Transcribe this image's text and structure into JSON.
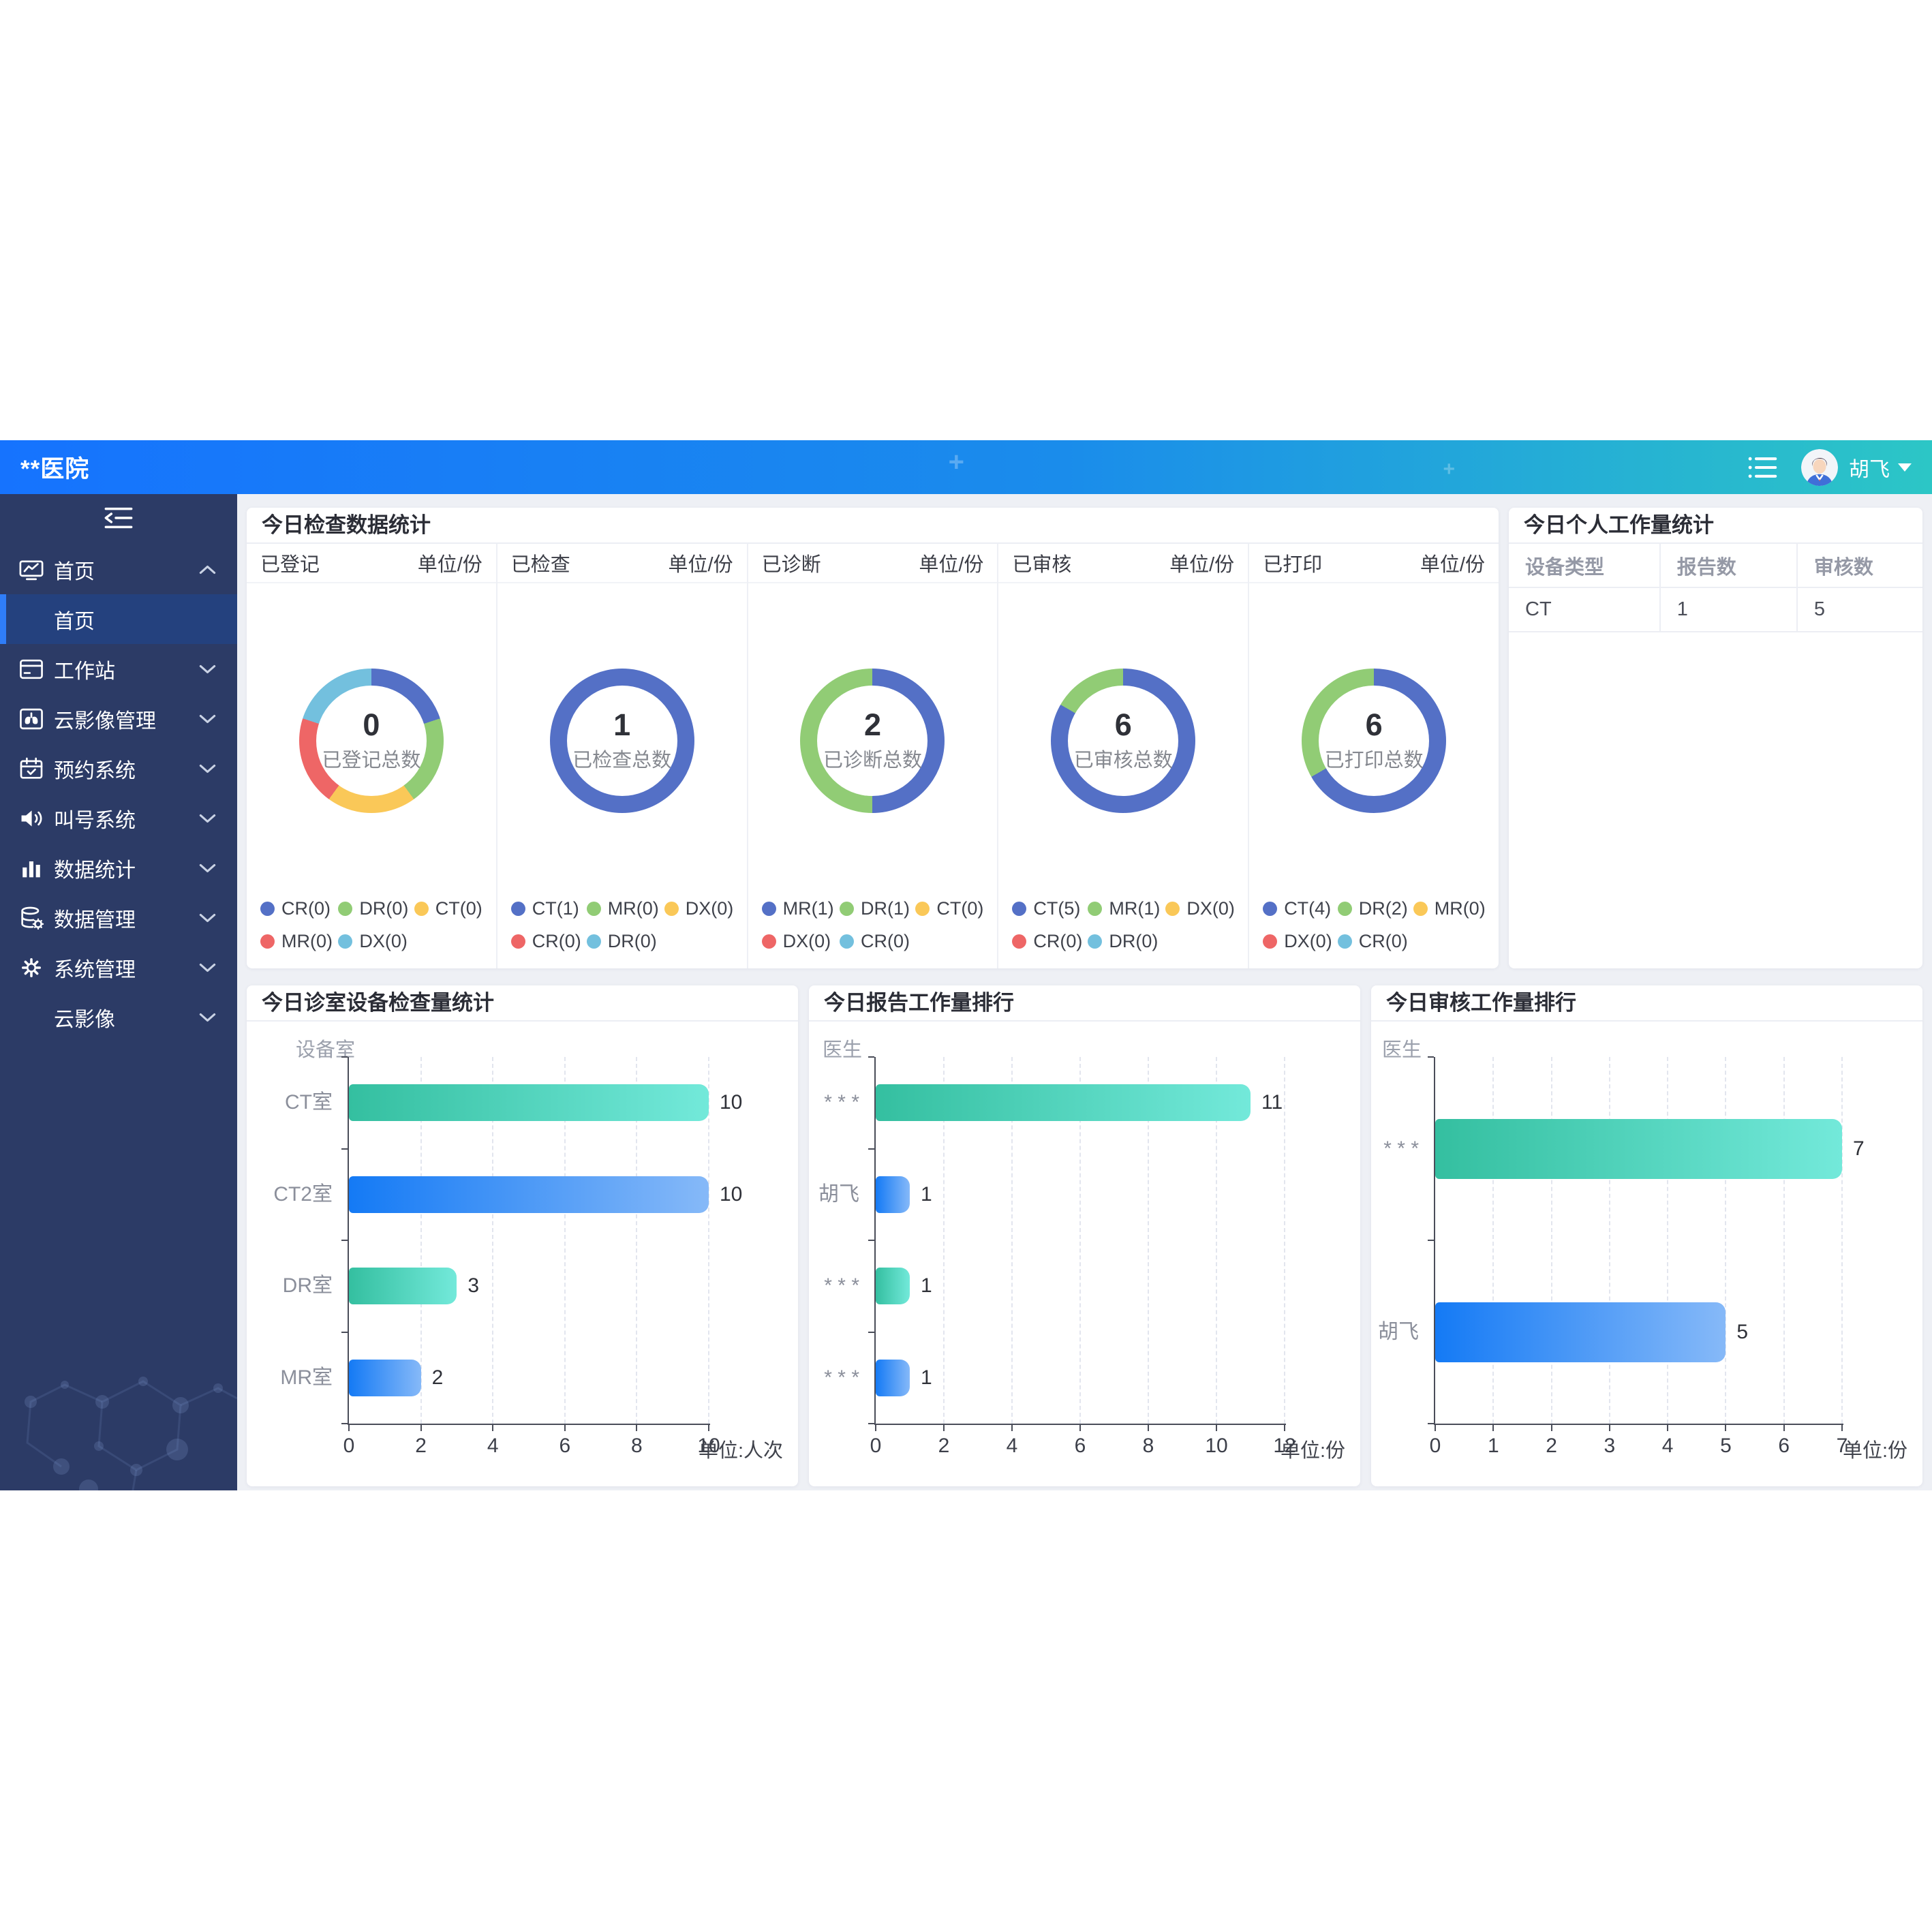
{
  "header": {
    "title": "**医院",
    "user_name": "胡飞"
  },
  "sidebar": {
    "items": [
      {
        "label": "首页",
        "icon": "dashboard-icon",
        "chevron": "up",
        "children": [
          {
            "label": "首页",
            "active": true
          }
        ]
      },
      {
        "label": "工作站",
        "icon": "workstation-icon",
        "chevron": "down"
      },
      {
        "label": "云影像管理",
        "icon": "cloud-image-icon",
        "chevron": "down"
      },
      {
        "label": "预约系统",
        "icon": "appointment-icon",
        "chevron": "down"
      },
      {
        "label": "叫号系统",
        "icon": "queue-call-icon",
        "chevron": "down"
      },
      {
        "label": "数据统计",
        "icon": "data-statistics-icon",
        "chevron": "down"
      },
      {
        "label": "数据管理",
        "icon": "data-management-icon",
        "chevron": "down"
      },
      {
        "label": "系统管理",
        "icon": "system-management-icon",
        "chevron": "down"
      },
      {
        "label": "云影像",
        "icon": null,
        "chevron": "down"
      }
    ]
  },
  "exam_stats_panel": {
    "title": "今日检查数据统计",
    "unit_label": "单位/份",
    "palette": {
      "blue": "#5470c6",
      "green": "#91cc75",
      "yellow": "#fac858",
      "red": "#ee6666",
      "lightblue": "#73c0de"
    },
    "sections": [
      {
        "name": "已登记",
        "total": "0",
        "total_label": "已登记总数",
        "ring": [
          {
            "color": "#5470c6",
            "deg": 72
          },
          {
            "color": "#91cc75",
            "deg": 72
          },
          {
            "color": "#fac858",
            "deg": 72
          },
          {
            "color": "#ee6666",
            "deg": 72
          },
          {
            "color": "#73c0de",
            "deg": 72
          }
        ],
        "legend": [
          {
            "label": "CR(0)",
            "color": "#5470c6"
          },
          {
            "label": "DR(0)",
            "color": "#91cc75"
          },
          {
            "label": "CT(0)",
            "color": "#fac858"
          },
          {
            "label": "MR(0)",
            "color": "#ee6666"
          },
          {
            "label": "DX(0)",
            "color": "#73c0de"
          }
        ]
      },
      {
        "name": "已检查",
        "total": "1",
        "total_label": "已检查总数",
        "ring": [
          {
            "color": "#5470c6",
            "deg": 360
          }
        ],
        "legend": [
          {
            "label": "CT(1)",
            "color": "#5470c6"
          },
          {
            "label": "MR(0)",
            "color": "#91cc75"
          },
          {
            "label": "DX(0)",
            "color": "#fac858"
          },
          {
            "label": "CR(0)",
            "color": "#ee6666"
          },
          {
            "label": "DR(0)",
            "color": "#73c0de"
          }
        ]
      },
      {
        "name": "已诊断",
        "total": "2",
        "total_label": "已诊断总数",
        "ring": [
          {
            "color": "#5470c6",
            "deg": 180
          },
          {
            "color": "#91cc75",
            "deg": 180
          }
        ],
        "legend": [
          {
            "label": "MR(1)",
            "color": "#5470c6"
          },
          {
            "label": "DR(1)",
            "color": "#91cc75"
          },
          {
            "label": "CT(0)",
            "color": "#fac858"
          },
          {
            "label": "DX(0)",
            "color": "#ee6666"
          },
          {
            "label": "CR(0)",
            "color": "#73c0de"
          }
        ]
      },
      {
        "name": "已审核",
        "total": "6",
        "total_label": "已审核总数",
        "ring": [
          {
            "color": "#5470c6",
            "deg": 300
          },
          {
            "color": "#91cc75",
            "deg": 60
          }
        ],
        "legend": [
          {
            "label": "CT(5)",
            "color": "#5470c6"
          },
          {
            "label": "MR(1)",
            "color": "#91cc75"
          },
          {
            "label": "DX(0)",
            "color": "#fac858"
          },
          {
            "label": "CR(0)",
            "color": "#ee6666"
          },
          {
            "label": "DR(0)",
            "color": "#73c0de"
          }
        ]
      },
      {
        "name": "已打印",
        "total": "6",
        "total_label": "已打印总数",
        "ring": [
          {
            "color": "#5470c6",
            "deg": 240
          },
          {
            "color": "#91cc75",
            "deg": 120
          }
        ],
        "legend": [
          {
            "label": "CT(4)",
            "color": "#5470c6"
          },
          {
            "label": "DR(2)",
            "color": "#91cc75"
          },
          {
            "label": "MR(0)",
            "color": "#fac858"
          },
          {
            "label": "DX(0)",
            "color": "#ee6666"
          },
          {
            "label": "CR(0)",
            "color": "#73c0de"
          }
        ]
      }
    ]
  },
  "personal_panel": {
    "title": "今日个人工作量统计",
    "columns": [
      "设备类型",
      "报告数",
      "审核数"
    ],
    "rows": [
      [
        "CT",
        "1",
        "5"
      ]
    ]
  },
  "chart_data": [
    {
      "type": "bar",
      "title": "今日诊室设备检查量统计",
      "axis_name": "设备室",
      "unit": "单位:人次",
      "categories": [
        "CT室",
        "CT2室",
        "DR室",
        "MR室"
      ],
      "values": [
        10,
        10,
        3,
        2
      ],
      "xticks": [
        0,
        2,
        4,
        6,
        8,
        10
      ],
      "xmax": 10,
      "bar_styles": [
        "teal",
        "blue",
        "teal",
        "blue"
      ],
      "grid": true,
      "legend_position": "none"
    },
    {
      "type": "bar",
      "title": "今日报告工作量排行",
      "axis_name": "医生",
      "unit": "单位:份",
      "categories": [
        "* * *",
        "胡飞",
        "* * *",
        "* * *"
      ],
      "values": [
        11,
        1,
        1,
        1
      ],
      "xticks": [
        0,
        2,
        4,
        6,
        8,
        10,
        12
      ],
      "xmax": 12,
      "bar_styles": [
        "teal",
        "blue",
        "teal",
        "blue"
      ],
      "grid": true,
      "legend_position": "none"
    },
    {
      "type": "bar",
      "title": "今日审核工作量排行",
      "axis_name": "医生",
      "unit": "单位:份",
      "categories": [
        "* * *",
        "胡飞"
      ],
      "values": [
        7,
        5
      ],
      "xticks": [
        0,
        1,
        2,
        3,
        4,
        5,
        6,
        7
      ],
      "xmax": 7,
      "bar_styles": [
        "teal",
        "blue"
      ],
      "grid": true,
      "legend_position": "none"
    }
  ],
  "colors": {
    "header_gradient": [
      "#1673fe",
      "#2cc6c6"
    ],
    "sidebar_bg": "#2c3b66",
    "sidebar_active_bg": "#24417e",
    "sidebar_active_bar": "#2f7df8",
    "main_bg": "#eef0f5",
    "teal_gradient": [
      "#34bfa0",
      "#73e9da"
    ],
    "blue_gradient": [
      "#147af5",
      "#86b9f8"
    ]
  }
}
